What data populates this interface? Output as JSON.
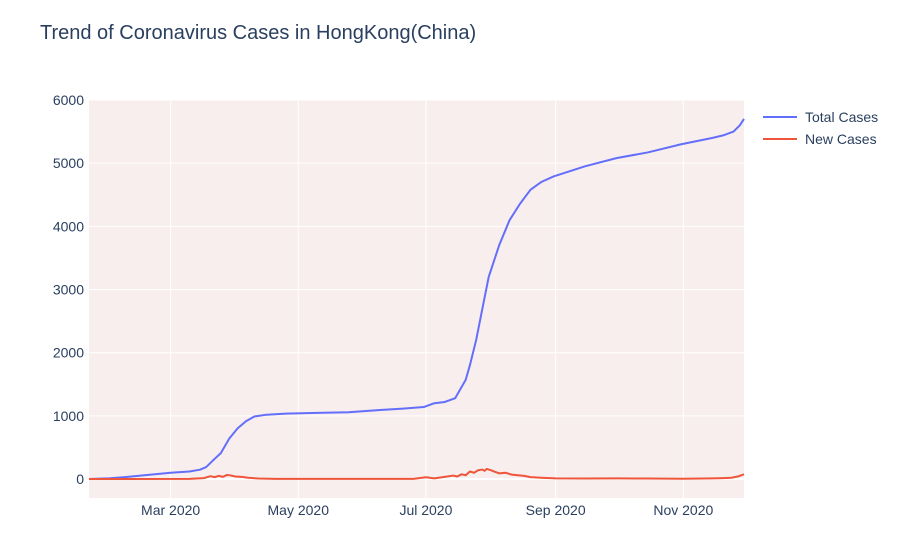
{
  "chart_data": {
    "type": "line",
    "title": "Trend of Coronavirus Cases in HongKong(China)",
    "xlabel": "",
    "ylabel": "",
    "x_range": [
      "2020-01-22",
      "2020-11-30"
    ],
    "ylim": [
      -300,
      6000
    ],
    "y_ticks": [
      0,
      1000,
      2000,
      3000,
      4000,
      5000,
      6000
    ],
    "x_ticks": [
      {
        "date": "2020-03-01",
        "label": "Mar 2020"
      },
      {
        "date": "2020-05-01",
        "label": "May 2020"
      },
      {
        "date": "2020-07-01",
        "label": "Jul 2020"
      },
      {
        "date": "2020-09-01",
        "label": "Sep 2020"
      },
      {
        "date": "2020-11-01",
        "label": "Nov 2020"
      }
    ],
    "grid": true,
    "legend_position": "right",
    "plot_background": "#f8eeee",
    "series": [
      {
        "name": "Total Cases",
        "color": "#636efa",
        "points": [
          [
            "2020-01-22",
            0
          ],
          [
            "2020-02-01",
            13
          ],
          [
            "2020-02-10",
            36
          ],
          [
            "2020-02-20",
            68
          ],
          [
            "2020-03-01",
            100
          ],
          [
            "2020-03-10",
            120
          ],
          [
            "2020-03-15",
            148
          ],
          [
            "2020-03-18",
            190
          ],
          [
            "2020-03-22",
            318
          ],
          [
            "2020-03-25",
            410
          ],
          [
            "2020-03-29",
            640
          ],
          [
            "2020-04-02",
            802
          ],
          [
            "2020-04-06",
            915
          ],
          [
            "2020-04-10",
            990
          ],
          [
            "2020-04-15",
            1015
          ],
          [
            "2020-04-25",
            1036
          ],
          [
            "2020-05-10",
            1048
          ],
          [
            "2020-05-25",
            1058
          ],
          [
            "2020-06-10",
            1095
          ],
          [
            "2020-06-20",
            1115
          ],
          [
            "2020-06-30",
            1140
          ],
          [
            "2020-07-05",
            1200
          ],
          [
            "2020-07-10",
            1220
          ],
          [
            "2020-07-15",
            1280
          ],
          [
            "2020-07-20",
            1570
          ],
          [
            "2020-07-22",
            1800
          ],
          [
            "2020-07-25",
            2200
          ],
          [
            "2020-07-28",
            2700
          ],
          [
            "2020-07-31",
            3200
          ],
          [
            "2020-08-05",
            3700
          ],
          [
            "2020-08-10",
            4100
          ],
          [
            "2020-08-15",
            4360
          ],
          [
            "2020-08-20",
            4580
          ],
          [
            "2020-08-25",
            4700
          ],
          [
            "2020-08-31",
            4790
          ],
          [
            "2020-09-15",
            4950
          ],
          [
            "2020-09-30",
            5080
          ],
          [
            "2020-10-15",
            5170
          ],
          [
            "2020-10-31",
            5300
          ],
          [
            "2020-11-15",
            5400
          ],
          [
            "2020-11-20",
            5440
          ],
          [
            "2020-11-25",
            5500
          ],
          [
            "2020-11-28",
            5600
          ],
          [
            "2020-11-30",
            5700
          ]
        ]
      },
      {
        "name": "New Cases",
        "color": "#ef553b",
        "points": [
          [
            "2020-01-22",
            0
          ],
          [
            "2020-03-10",
            2
          ],
          [
            "2020-03-17",
            15
          ],
          [
            "2020-03-20",
            45
          ],
          [
            "2020-03-22",
            30
          ],
          [
            "2020-03-24",
            50
          ],
          [
            "2020-03-26",
            35
          ],
          [
            "2020-03-28",
            65
          ],
          [
            "2020-03-30",
            55
          ],
          [
            "2020-04-01",
            40
          ],
          [
            "2020-04-04",
            35
          ],
          [
            "2020-04-07",
            20
          ],
          [
            "2020-04-12",
            8
          ],
          [
            "2020-04-20",
            3
          ],
          [
            "2020-05-15",
            2
          ],
          [
            "2020-06-25",
            3
          ],
          [
            "2020-07-01",
            28
          ],
          [
            "2020-07-05",
            10
          ],
          [
            "2020-07-10",
            35
          ],
          [
            "2020-07-14",
            55
          ],
          [
            "2020-07-16",
            40
          ],
          [
            "2020-07-18",
            75
          ],
          [
            "2020-07-20",
            60
          ],
          [
            "2020-07-22",
            120
          ],
          [
            "2020-07-24",
            100
          ],
          [
            "2020-07-26",
            140
          ],
          [
            "2020-07-28",
            150
          ],
          [
            "2020-07-29",
            130
          ],
          [
            "2020-07-30",
            160
          ],
          [
            "2020-08-01",
            140
          ],
          [
            "2020-08-03",
            115
          ],
          [
            "2020-08-05",
            90
          ],
          [
            "2020-08-08",
            100
          ],
          [
            "2020-08-11",
            70
          ],
          [
            "2020-08-14",
            60
          ],
          [
            "2020-08-17",
            50
          ],
          [
            "2020-08-20",
            30
          ],
          [
            "2020-08-25",
            20
          ],
          [
            "2020-09-01",
            10
          ],
          [
            "2020-09-15",
            8
          ],
          [
            "2020-10-01",
            10
          ],
          [
            "2020-10-15",
            8
          ],
          [
            "2020-11-01",
            5
          ],
          [
            "2020-11-15",
            10
          ],
          [
            "2020-11-20",
            15
          ],
          [
            "2020-11-24",
            20
          ],
          [
            "2020-11-27",
            40
          ],
          [
            "2020-11-30",
            75
          ]
        ]
      }
    ]
  }
}
